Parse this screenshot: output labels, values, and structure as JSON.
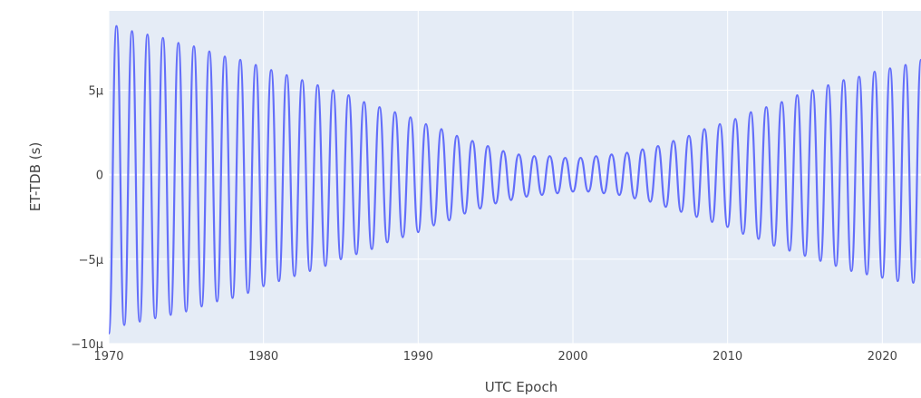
{
  "chart_data": {
    "type": "line",
    "title": "",
    "xlabel": "UTC Epoch",
    "ylabel": "ET-TDB (s)",
    "xlim": [
      1970.0,
      2022.5
    ],
    "ylim": [
      -1e-05,
      9.7e-06
    ],
    "x_ticks": [
      1970,
      1980,
      1990,
      2000,
      2010,
      2020
    ],
    "x_tick_labels": [
      "1970",
      "1980",
      "1990",
      "2000",
      "2010",
      "2020"
    ],
    "y_ticks": [
      -1e-05,
      -5e-06,
      0,
      5e-06
    ],
    "y_tick_labels": [
      "−10μ",
      "−5μ",
      "0",
      "5μ"
    ],
    "grid": true,
    "legend": "none",
    "colors": {
      "line": "#636efa",
      "plot_background": "#e5ecf6",
      "grid": "#ffffff",
      "text": "#444444"
    },
    "series": [
      {
        "x": [
          1970.0,
          1970.5,
          1971.0,
          1971.5,
          1972.0,
          1972.5,
          1973.0,
          1973.5,
          1974.0,
          1974.5,
          1975.0,
          1975.5,
          1976.0,
          1976.5,
          1977.0,
          1977.5,
          1978.0,
          1978.5,
          1979.0,
          1979.5,
          1980.0,
          1980.5,
          1981.0,
          1981.5,
          1982.0,
          1982.5,
          1983.0,
          1983.5,
          1984.0,
          1984.5,
          1985.0,
          1985.5,
          1986.0,
          1986.5,
          1987.0,
          1987.5,
          1988.0,
          1988.5,
          1989.0,
          1989.5,
          1990.0,
          1990.5,
          1991.0,
          1991.5,
          1992.0,
          1992.5,
          1993.0,
          1993.5,
          1994.0,
          1994.5,
          1995.0,
          1995.5,
          1996.0,
          1996.5,
          1997.0,
          1997.5,
          1998.0,
          1998.5,
          1999.0,
          1999.5,
          2000.0,
          2000.5,
          2001.0,
          2001.5,
          2002.0,
          2002.5,
          2003.0,
          2003.5,
          2004.0,
          2004.5,
          2005.0,
          2005.5,
          2006.0,
          2006.5,
          2007.0,
          2007.5,
          2008.0,
          2008.5,
          2009.0,
          2009.5,
          2010.0,
          2010.5,
          2011.0,
          2011.5,
          2012.0,
          2012.5,
          2013.0,
          2013.5,
          2014.0,
          2014.5,
          2015.0,
          2015.5,
          2016.0,
          2016.5,
          2017.0,
          2017.5,
          2018.0,
          2018.5,
          2019.0,
          2019.5,
          2020.0,
          2020.5,
          2021.0,
          2021.5,
          2022.0,
          2022.5
        ],
        "y": [
          -9.4e-06,
          8.8e-06,
          -8.9e-06,
          8.5e-06,
          -8.7e-06,
          8.3e-06,
          -8.5e-06,
          8.1e-06,
          -8.3e-06,
          7.8e-06,
          -8.1e-06,
          7.6e-06,
          -7.8e-06,
          7.3e-06,
          -7.5e-06,
          7e-06,
          -7.3e-06,
          6.8e-06,
          -7e-06,
          6.5e-06,
          -6.6e-06,
          6.2e-06,
          -6.3e-06,
          5.9e-06,
          -6e-06,
          5.6e-06,
          -5.7e-06,
          5.3e-06,
          -5.4e-06,
          5e-06,
          -5e-06,
          4.7e-06,
          -4.7e-06,
          4.3e-06,
          -4.4e-06,
          4e-06,
          -4e-06,
          3.7e-06,
          -3.7e-06,
          3.4e-06,
          -3.4e-06,
          3e-06,
          -3e-06,
          2.7e-06,
          -2.7e-06,
          2.3e-06,
          -2.3e-06,
          2e-06,
          -2e-06,
          1.7e-06,
          -1.7e-06,
          1.4e-06,
          -1.5e-06,
          1.2e-06,
          -1.3e-06,
          1.1e-06,
          -1.2e-06,
          1.1e-06,
          -1.1e-06,
          1e-06,
          -1e-06,
          1e-06,
          -1e-06,
          1.1e-06,
          -1.1e-06,
          1.2e-06,
          -1.2e-06,
          1.3e-06,
          -1.4e-06,
          1.5e-06,
          -1.6e-06,
          1.7e-06,
          -1.9e-06,
          2e-06,
          -2.2e-06,
          2.3e-06,
          -2.5e-06,
          2.7e-06,
          -2.8e-06,
          3e-06,
          -3.1e-06,
          3.3e-06,
          -3.5e-06,
          3.7e-06,
          -3.8e-06,
          4e-06,
          -4.2e-06,
          4.3e-06,
          -4.5e-06,
          4.7e-06,
          -4.8e-06,
          5e-06,
          -5.1e-06,
          5.3e-06,
          -5.4e-06,
          5.6e-06,
          -5.7e-06,
          5.8e-06,
          -5.9e-06,
          6.1e-06,
          -6.1e-06,
          6.3e-06,
          -6.3e-06,
          6.5e-06,
          -6.4e-06,
          6.8e-06
        ]
      }
    ]
  }
}
